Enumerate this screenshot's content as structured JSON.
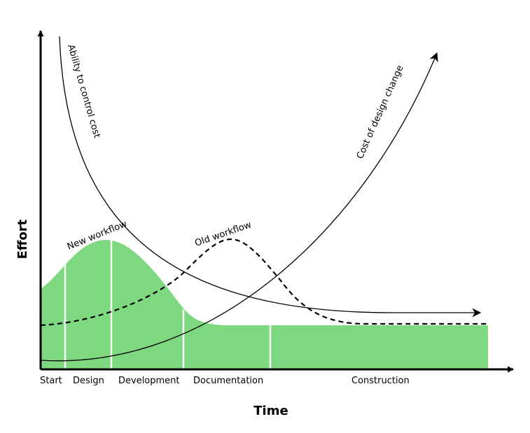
{
  "axes": {
    "x_title": "Time",
    "y_title": "Effort"
  },
  "phases": [
    "Start",
    "Design",
    "Development",
    "Documentation",
    "Construction"
  ],
  "curves": {
    "new_workflow": "New workflow",
    "old_workflow": "Old workflow",
    "ability": "Ability to control cost",
    "cost_change": "Cost of design change"
  },
  "colors": {
    "fill": "#7ed880",
    "line": "#000000",
    "divider": "#ffffff"
  }
}
